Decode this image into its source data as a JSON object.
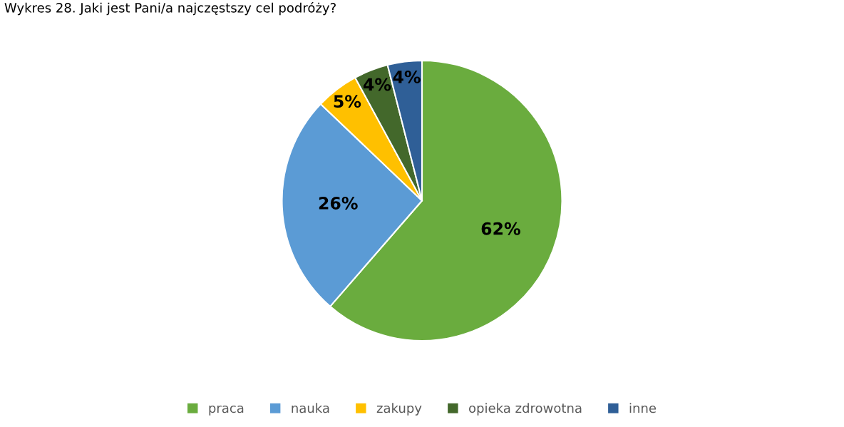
{
  "chart_data": {
    "type": "pie",
    "title": "Wykres 28. Jaki jest Pani/a najczęstszy cel podróży?",
    "categories": [
      "praca",
      "nauka",
      "zakupy",
      "opieka zdrowotna",
      "inne"
    ],
    "values": [
      62,
      26,
      5,
      4,
      4
    ],
    "colors": [
      "#6aac3e",
      "#5b9bd5",
      "#ffc000",
      "#43682b",
      "#2f5f97"
    ],
    "value_labels": [
      "62%",
      "26%",
      "5%",
      "4%",
      "4%"
    ],
    "legend": "bottom"
  }
}
